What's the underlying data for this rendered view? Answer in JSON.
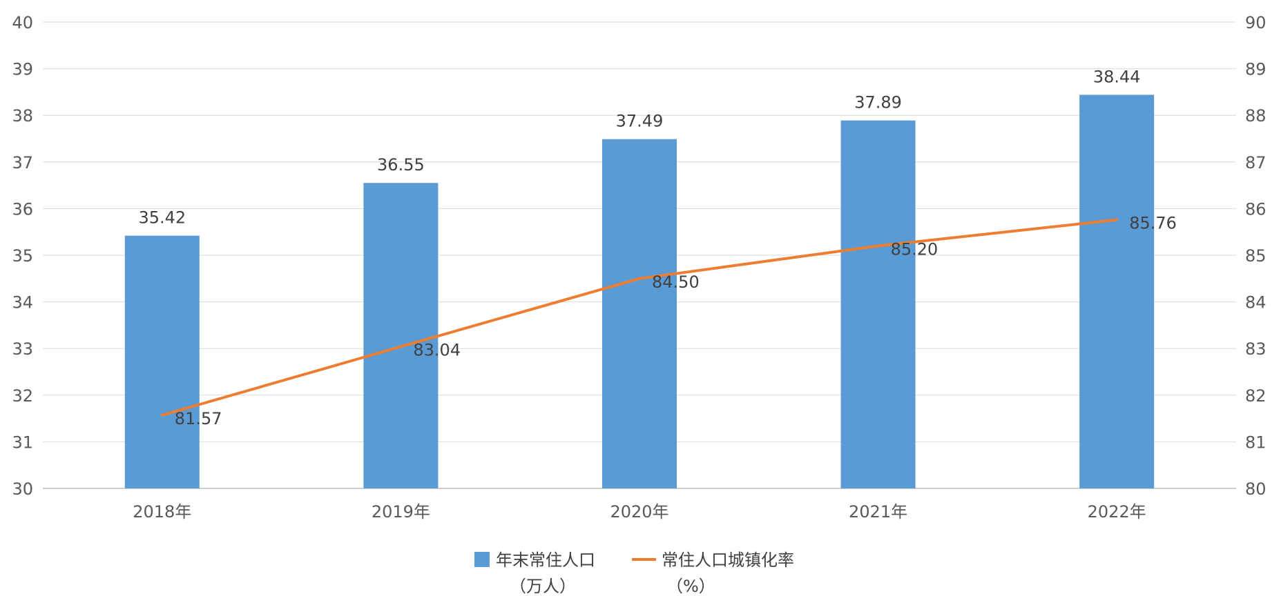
{
  "chart_data": {
    "type": "bar",
    "categories": [
      "2018年",
      "2019年",
      "2020年",
      "2021年",
      "2022年"
    ],
    "series": [
      {
        "name_line1": "年末常住人口",
        "name_line2": "（万人）",
        "type": "bar",
        "axis": "left",
        "color": "#5B9BD5",
        "values": [
          35.42,
          36.55,
          37.49,
          37.89,
          38.44
        ],
        "labels": [
          "35.42",
          "36.55",
          "37.49",
          "37.89",
          "38.44"
        ]
      },
      {
        "name_line1": "常住人口城镇化率",
        "name_line2": "（%）",
        "type": "line",
        "axis": "right",
        "color": "#ED7D31",
        "values": [
          81.57,
          83.04,
          84.5,
          85.2,
          85.76
        ],
        "labels": [
          "81.57",
          "83.04",
          "84.50",
          "85.20",
          "85.76"
        ]
      }
    ],
    "y_left": {
      "ylim": [
        30,
        40
      ],
      "ticks": [
        "30",
        "31",
        "32",
        "33",
        "34",
        "35",
        "36",
        "37",
        "38",
        "39",
        "40"
      ]
    },
    "y_right": {
      "ylim": [
        80,
        90
      ],
      "ticks": [
        "80",
        "81",
        "82",
        "83",
        "84",
        "85",
        "86",
        "87",
        "88",
        "89",
        "90"
      ]
    },
    "grid": true,
    "legend_position": "bottom"
  },
  "colors": {
    "grid": "#D9D9D9",
    "axis": "#BFBFBF"
  }
}
